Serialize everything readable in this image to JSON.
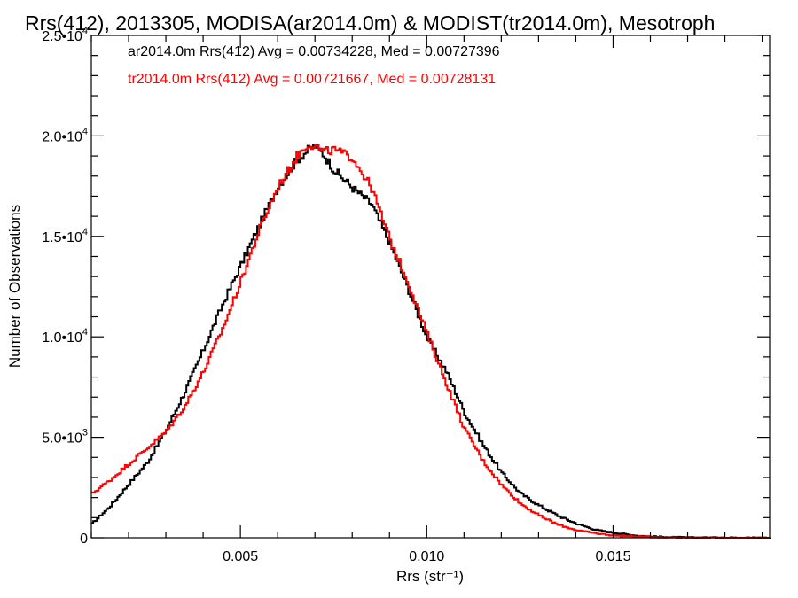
{
  "chart_data": {
    "type": "line",
    "title": "Rrs(412), 2013305, MODISA(ar2014.0m) & MODIST(tr2014.0m), Mesotroph",
    "xlabel": "Rrs (str⁻¹)",
    "ylabel": "Number of Observations",
    "xlim": [
      0.001,
      0.0192
    ],
    "ylim": [
      0,
      25000
    ],
    "x_ticks": [
      {
        "value": 0.005,
        "label": "0.005"
      },
      {
        "value": 0.01,
        "label": "0.010"
      },
      {
        "value": 0.015,
        "label": "0.015"
      }
    ],
    "y_ticks": [
      {
        "value": 0,
        "mant": "0",
        "exp": ""
      },
      {
        "value": 5000,
        "mant": "5.0•10",
        "exp": "3"
      },
      {
        "value": 10000,
        "mant": "1.0•10",
        "exp": "4"
      },
      {
        "value": 15000,
        "mant": "1.5•10",
        "exp": "4"
      },
      {
        "value": 20000,
        "mant": "2.0•10",
        "exp": "4"
      },
      {
        "value": 25000,
        "mant": "2.5•10",
        "exp": "4"
      }
    ],
    "grid": false,
    "legend": [
      {
        "text": "ar2014.0m Rrs(412) Avg = 0.00734228, Med = 0.00727396",
        "color": "#000000"
      },
      {
        "text": "tr2014.0m Rrs(412) Avg = 0.00721667, Med = 0.00728131",
        "color": "#ff0000"
      }
    ],
    "legend_placement": "top-left",
    "series": [
      {
        "color": "#000000",
        "x": [
          0.001,
          0.0015,
          0.002,
          0.0025,
          0.003,
          0.0035,
          0.004,
          0.0045,
          0.005,
          0.0055,
          0.006,
          0.0065,
          0.0068,
          0.007,
          0.0072,
          0.0075,
          0.008,
          0.0085,
          0.009,
          0.0095,
          0.01,
          0.0105,
          0.011,
          0.0115,
          0.012,
          0.0125,
          0.013,
          0.0135,
          0.014,
          0.0145,
          0.015,
          0.0155,
          0.016,
          0.0165,
          0.017,
          0.0175,
          0.018,
          0.0185,
          0.0192
        ],
        "y": [
          700,
          1600,
          2700,
          3800,
          5400,
          7300,
          9400,
          11600,
          13600,
          15600,
          17500,
          18800,
          19300,
          19500,
          19100,
          18300,
          17400,
          16600,
          14600,
          12300,
          9900,
          8300,
          6200,
          4600,
          3200,
          2200,
          1600,
          1100,
          700,
          400,
          250,
          130,
          60,
          30,
          15,
          8,
          4,
          2,
          0
        ]
      },
      {
        "color": "#ff0000",
        "x": [
          0.001,
          0.0015,
          0.002,
          0.0025,
          0.003,
          0.0035,
          0.004,
          0.0045,
          0.005,
          0.0055,
          0.006,
          0.0065,
          0.0068,
          0.007,
          0.0072,
          0.0075,
          0.008,
          0.0085,
          0.009,
          0.0095,
          0.01,
          0.0105,
          0.011,
          0.0115,
          0.012,
          0.0125,
          0.013,
          0.0135,
          0.014,
          0.0145,
          0.015,
          0.0155,
          0.016,
          0.0165,
          0.017,
          0.0175,
          0.018,
          0.0185,
          0.0192
        ],
        "y": [
          2200,
          2900,
          3700,
          4500,
          5300,
          6600,
          8300,
          10400,
          12800,
          15400,
          17500,
          19000,
          19600,
          19500,
          19200,
          19300,
          18900,
          17400,
          14800,
          12600,
          10100,
          7700,
          5400,
          3800,
          2600,
          1700,
          1100,
          650,
          380,
          220,
          120,
          70,
          40,
          25,
          15,
          10,
          6,
          4,
          2
        ]
      }
    ]
  }
}
